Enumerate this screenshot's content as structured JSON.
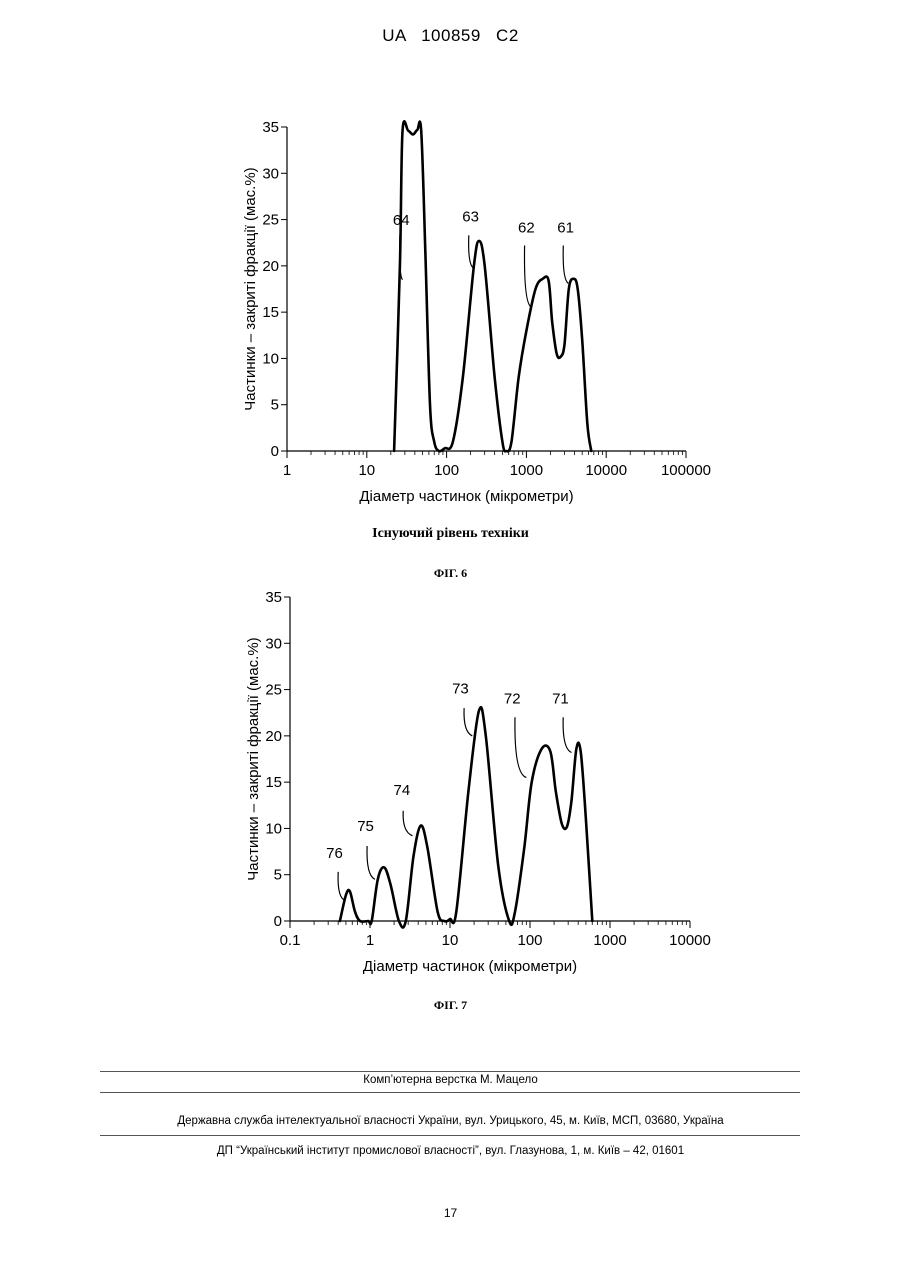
{
  "header": {
    "patent_id": "UA   100859   C2"
  },
  "captions": {
    "prior_art": "Існуючий рівень техніки",
    "fig6": "ФІГ. 6",
    "fig7": "ФІГ. 7"
  },
  "footer": {
    "layout_credit": "Комп’ютерна верстка М. Мацело",
    "agency": "Державна служба інтелектуальної власності України, вул. Урицького, 45, м. Київ, МСП, 03680, Україна",
    "institute": "ДП “Український інститут промислової власності”, вул. Глазунова, 1, м. Київ – 42, 01601",
    "page_number": "17"
  },
  "chart_data": [
    {
      "type": "line",
      "figure": "ФІГ. 6",
      "xlabel": "Діаметр частинок (мікрометри)",
      "ylabel": "Частинки – закриті фракції (мас.%)",
      "x_scale": "log",
      "xlim": [
        1,
        100000
      ],
      "ylim": [
        0,
        35
      ],
      "x_ticks": [
        1,
        10,
        100,
        1000,
        10000,
        100000
      ],
      "x_tick_labels": [
        "1",
        "10",
        "100",
        "1000",
        "10000",
        "100000"
      ],
      "y_ticks": [
        0,
        5,
        10,
        15,
        20,
        25,
        30,
        35
      ],
      "y_tick_labels": [
        "0",
        "5",
        "10",
        "15",
        "20",
        "25",
        "30",
        "35"
      ],
      "grid": false,
      "curve": [
        [
          22,
          0
        ],
        [
          26,
          20
        ],
        [
          28,
          34.5
        ],
        [
          33,
          34.6
        ],
        [
          38,
          34.2
        ],
        [
          43,
          34.7
        ],
        [
          48,
          34.6
        ],
        [
          54,
          22
        ],
        [
          62,
          5
        ],
        [
          70,
          1
        ],
        [
          80,
          0
        ],
        [
          95,
          0.3
        ],
        [
          120,
          1
        ],
        [
          160,
          8
        ],
        [
          220,
          20
        ],
        [
          255,
          22.7
        ],
        [
          300,
          20
        ],
        [
          400,
          8
        ],
        [
          500,
          1
        ],
        [
          560,
          0
        ],
        [
          650,
          1
        ],
        [
          800,
          8
        ],
        [
          1000,
          13
        ],
        [
          1300,
          17.5
        ],
        [
          1600,
          18.6
        ],
        [
          1900,
          18.4
        ],
        [
          2100,
          14
        ],
        [
          2400,
          10.5
        ],
        [
          2700,
          10.2
        ],
        [
          3000,
          11.5
        ],
        [
          3400,
          17.5
        ],
        [
          3900,
          18.6
        ],
        [
          4400,
          17.5
        ],
        [
          5000,
          12
        ],
        [
          5800,
          3
        ],
        [
          6500,
          0
        ]
      ],
      "labels": [
        {
          "text": "64",
          "x": 27,
          "y": 24.4,
          "lead": [
            [
              26,
              23.3
            ],
            [
              28,
              18.5
            ]
          ]
        },
        {
          "text": "63",
          "x": 200,
          "y": 24.8,
          "lead": [
            [
              190,
              23.3
            ],
            [
              215,
              19.8
            ]
          ]
        },
        {
          "text": "62",
          "x": 1000,
          "y": 23.6,
          "lead": [
            [
              950,
              22.2
            ],
            [
              1160,
              15.5
            ]
          ]
        },
        {
          "text": "61",
          "x": 3100,
          "y": 23.6,
          "lead": [
            [
              2900,
              22.2
            ],
            [
              3350,
              18.1
            ]
          ]
        }
      ]
    },
    {
      "type": "line",
      "figure": "ФІГ. 7",
      "xlabel": "Діаметр частинок (мікрометри)",
      "ylabel": "Частинки – закриті фракції (мас.%)",
      "x_scale": "log",
      "xlim": [
        0.1,
        10000
      ],
      "ylim": [
        0,
        35
      ],
      "x_ticks": [
        0.1,
        1,
        10,
        100,
        1000,
        10000
      ],
      "x_tick_labels": [
        "0.1",
        "1",
        "10",
        "100",
        "1000",
        "10000"
      ],
      "y_ticks": [
        0,
        5,
        10,
        15,
        20,
        25,
        30,
        35
      ],
      "y_tick_labels": [
        "0",
        "5",
        "10",
        "15",
        "20",
        "25",
        "30",
        "35"
      ],
      "grid": false,
      "curve": [
        [
          0.42,
          0
        ],
        [
          0.5,
          2.8
        ],
        [
          0.56,
          3.2
        ],
        [
          0.65,
          1
        ],
        [
          0.75,
          0
        ],
        [
          0.95,
          0
        ],
        [
          1.05,
          0
        ],
        [
          1.25,
          4.5
        ],
        [
          1.5,
          5.8
        ],
        [
          1.8,
          4
        ],
        [
          2.3,
          0
        ],
        [
          2.8,
          0
        ],
        [
          3.5,
          7
        ],
        [
          4.3,
          10.3
        ],
        [
          5.2,
          8
        ],
        [
          7,
          1
        ],
        [
          8.5,
          0
        ],
        [
          10,
          0.2
        ],
        [
          12,
          1
        ],
        [
          17,
          14
        ],
        [
          23,
          22.7
        ],
        [
          28,
          20
        ],
        [
          40,
          6
        ],
        [
          55,
          0
        ],
        [
          65,
          1
        ],
        [
          85,
          8
        ],
        [
          105,
          15
        ],
        [
          140,
          18.6
        ],
        [
          180,
          18.3
        ],
        [
          210,
          14
        ],
        [
          250,
          10.5
        ],
        [
          290,
          10.2
        ],
        [
          330,
          13
        ],
        [
          380,
          18.6
        ],
        [
          430,
          18.3
        ],
        [
          500,
          11
        ],
        [
          600,
          0
        ]
      ],
      "labels": [
        {
          "text": "76",
          "x": 0.36,
          "y": 6.8,
          "lead": [
            [
              0.4,
              5.3
            ],
            [
              0.47,
              2.3
            ]
          ]
        },
        {
          "text": "75",
          "x": 0.88,
          "y": 9.7,
          "lead": [
            [
              0.92,
              8.1
            ],
            [
              1.15,
              4.5
            ]
          ]
        },
        {
          "text": "74",
          "x": 2.5,
          "y": 13.6,
          "lead": [
            [
              2.6,
              11.9
            ],
            [
              3.4,
              9.2
            ]
          ]
        },
        {
          "text": "73",
          "x": 13.5,
          "y": 24.6,
          "lead": [
            [
              15,
              23
            ],
            [
              19,
              20
            ]
          ]
        },
        {
          "text": "72",
          "x": 60,
          "y": 23.5,
          "lead": [
            [
              65,
              22
            ],
            [
              90,
              15.5
            ]
          ]
        },
        {
          "text": "71",
          "x": 240,
          "y": 23.5,
          "lead": [
            [
              260,
              22
            ],
            [
              330,
              18.2
            ]
          ]
        }
      ]
    }
  ]
}
